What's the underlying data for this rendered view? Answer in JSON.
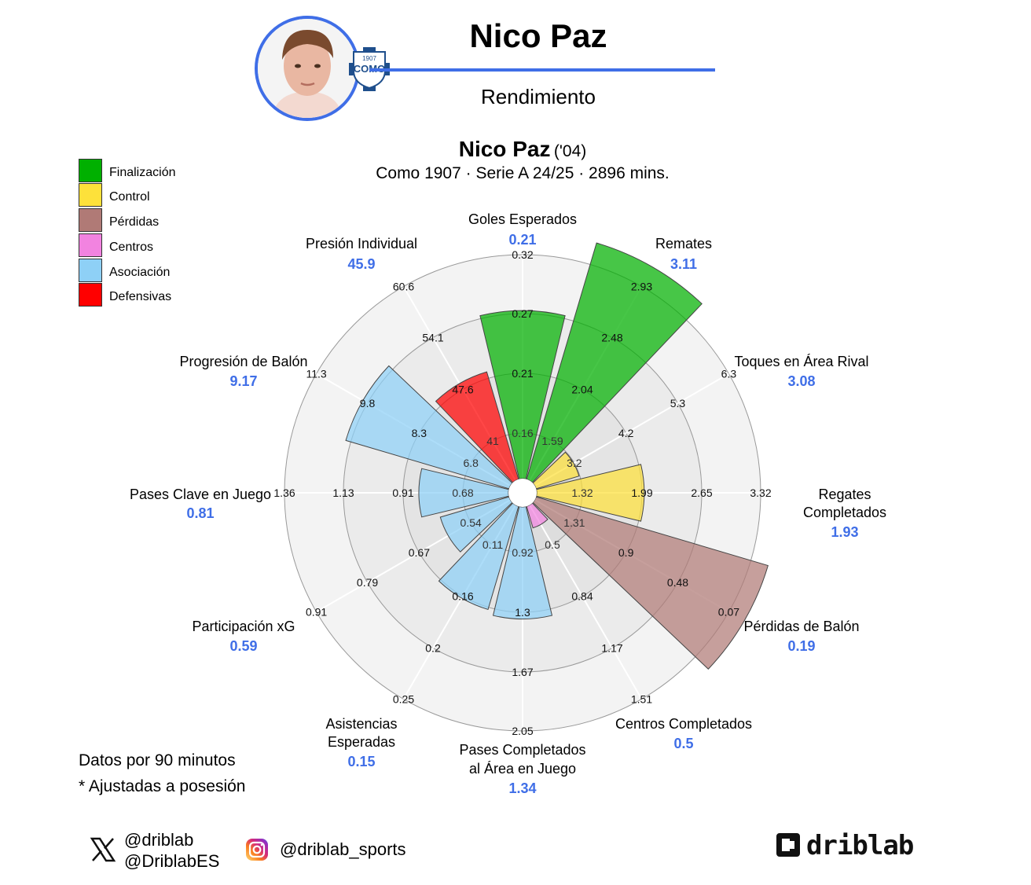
{
  "header": {
    "player_name": "Nico Paz",
    "subtitle": "Rendimiento",
    "club_badge_year": "1907",
    "club_badge_name": "COMO"
  },
  "chart_title": {
    "name": "Nico Paz",
    "birth_year": "('04)",
    "subtitle": "Como 1907 · Serie A 24/25 · 2896 mins."
  },
  "legend": [
    {
      "label": "Finalización",
      "color": "#00b000"
    },
    {
      "label": "Control",
      "color": "#fde13a"
    },
    {
      "label": "Pérdidas",
      "color": "#b07a76"
    },
    {
      "label": "Centros",
      "color": "#f283e0"
    },
    {
      "label": "Asociación",
      "color": "#8ed0f6"
    },
    {
      "label": "Defensivas",
      "color": "#ff0000"
    }
  ],
  "notes": {
    "per90": "Datos por 90 minutos",
    "adjusted": "* Ajustadas a posesión"
  },
  "social": {
    "x_handle_1": "@driblab",
    "x_handle_2": "@DriblabES",
    "instagram": "@driblab_sports",
    "brand": "driblab",
    "x_icon": "x-logo-icon",
    "instagram_icon": "instagram-icon"
  },
  "chart_data": {
    "type": "polar-bar",
    "categories": [
      {
        "label": "Goles Esperados",
        "value": "0.21",
        "group": "Finalización",
        "fill": 0.75,
        "ticks": [
          "0.16",
          "0.21",
          "0.27",
          "0.32"
        ]
      },
      {
        "label": "Remates",
        "value": "3.11",
        "group": "Finalización",
        "fill": 1.1,
        "ticks": [
          "1.59",
          "2.04",
          "2.48",
          "2.93"
        ]
      },
      {
        "label": "Toques en Área Rival",
        "value": "3.08",
        "group": "Control",
        "fill": 0.2,
        "ticks": [
          "3.2",
          "4.2",
          "5.3",
          "6.3"
        ]
      },
      {
        "label": "Regates Completados",
        "value": "1.93",
        "group": "Control",
        "fill": 0.48,
        "ticks": [
          "1.32",
          "1.99",
          "2.65",
          "3.32"
        ]
      },
      {
        "label": "Pérdidas de Balón",
        "value": "0.19",
        "group": "Pérdidas",
        "fill": 1.08,
        "ticks": [
          "1.31",
          "0.9",
          "0.48",
          "0.07"
        ]
      },
      {
        "label": "Centros Completados",
        "value": "0.5",
        "group": "Centros",
        "fill": 0.1,
        "ticks": [
          "0.5",
          "0.84",
          "1.17",
          "1.51"
        ]
      },
      {
        "label": "Pases Completados al Área en Juego",
        "value": "1.34",
        "group": "Asociación",
        "fill": 0.5,
        "ticks": [
          "0.92",
          "1.3",
          "1.67",
          "2.05"
        ]
      },
      {
        "label": "Asistencias Esperadas",
        "value": "0.15",
        "group": "Asociación",
        "fill": 0.48,
        "ticks": [
          "0.11",
          "0.16",
          "0.2",
          "0.25"
        ]
      },
      {
        "label": "Participación xG",
        "value": "0.59",
        "group": "Asociación",
        "fill": 0.32,
        "ticks": [
          "0.54",
          "0.67",
          "0.79",
          "0.91"
        ]
      },
      {
        "label": "Pases Clave en Juego",
        "value": "0.81",
        "group": "Asociación",
        "fill": 0.4,
        "ticks": [
          "0.68",
          "0.91",
          "1.13",
          "1.36"
        ]
      },
      {
        "label": "Progresión de Balón",
        "value": "9.17",
        "group": "Asociación",
        "fill": 0.76,
        "ticks": [
          "6.8",
          "8.3",
          "9.8",
          "11.3"
        ]
      },
      {
        "label": "Presión Individual",
        "value": "45.9",
        "group": "Defensivas",
        "fill": 0.5,
        "ticks": [
          "41",
          "47.6",
          "54.1",
          "60.6"
        ]
      }
    ],
    "grid": true
  }
}
